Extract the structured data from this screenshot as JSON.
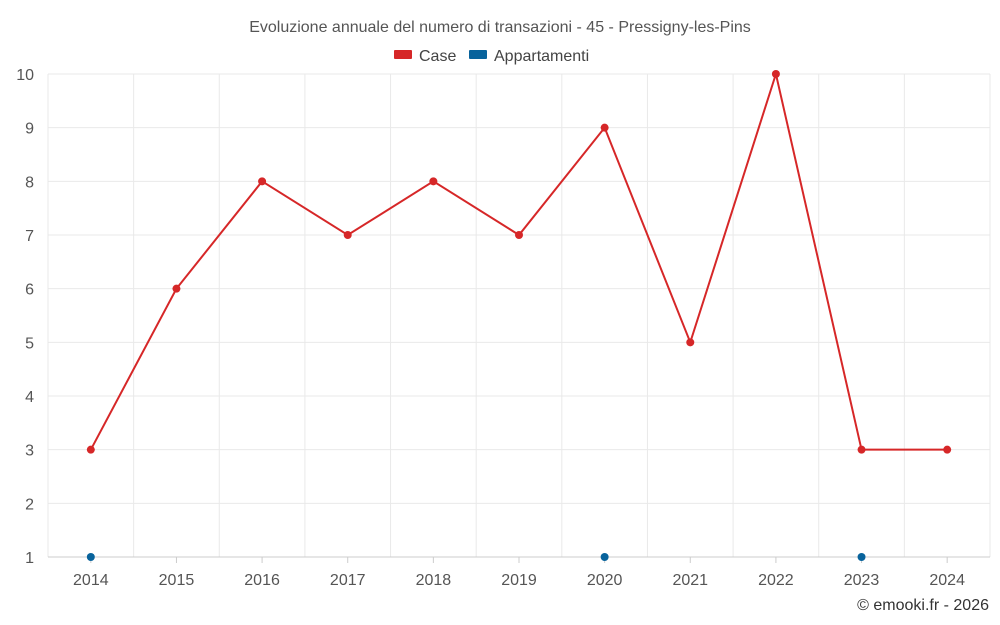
{
  "chart_data": {
    "type": "line",
    "title": "Evoluzione annuale del numero di transazioni - 45 - Pressigny-les-Pins",
    "categories": [
      "2014",
      "2015",
      "2016",
      "2017",
      "2018",
      "2019",
      "2020",
      "2021",
      "2022",
      "2023",
      "2024"
    ],
    "series": [
      {
        "name": "Case",
        "color": "#d62728",
        "line": true,
        "values": [
          3,
          6,
          8,
          7,
          8,
          7,
          9,
          5,
          10,
          3,
          3
        ]
      },
      {
        "name": "Appartamenti",
        "color": "#08639c",
        "line": false,
        "values": [
          1,
          null,
          null,
          null,
          null,
          null,
          1,
          null,
          null,
          1,
          null
        ]
      }
    ],
    "ylim": [
      1,
      10
    ],
    "yticks": [
      1,
      2,
      3,
      4,
      5,
      6,
      7,
      8,
      9,
      10
    ],
    "grid": true,
    "legend_position": "top-center",
    "xlabel": "",
    "ylabel": ""
  },
  "credit": "© emooki.fr - 2026"
}
